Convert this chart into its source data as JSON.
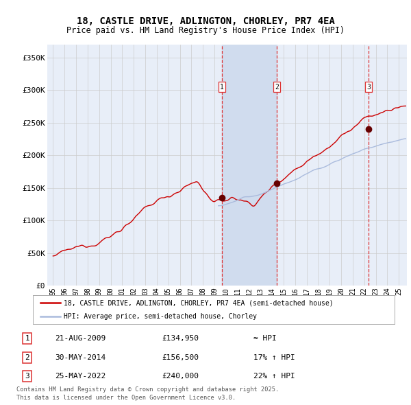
{
  "title1": "18, CASTLE DRIVE, ADLINGTON, CHORLEY, PR7 4EA",
  "title2": "Price paid vs. HM Land Registry's House Price Index (HPI)",
  "legend_red": "18, CASTLE DRIVE, ADLINGTON, CHORLEY, PR7 4EA (semi-detached house)",
  "legend_blue": "HPI: Average price, semi-detached house, Chorley",
  "footer1": "Contains HM Land Registry data © Crown copyright and database right 2025.",
  "footer2": "This data is licensed under the Open Government Licence v3.0.",
  "sales": [
    {
      "num": 1,
      "date": "21-AUG-2009",
      "price": 134950,
      "note": "≈ HPI"
    },
    {
      "num": 2,
      "date": "30-MAY-2014",
      "price": 156500,
      "note": "17% ↑ HPI"
    },
    {
      "num": 3,
      "date": "25-MAY-2022",
      "price": 240000,
      "note": "22% ↑ HPI"
    }
  ],
  "sale_dates_decimal": [
    2009.645,
    2014.413,
    2022.394
  ],
  "sale_prices": [
    134950,
    156500,
    240000
  ],
  "ylim": [
    0,
    370000
  ],
  "yticks": [
    0,
    50000,
    100000,
    150000,
    200000,
    250000,
    300000,
    350000
  ],
  "ytick_labels": [
    "£0",
    "£50K",
    "£100K",
    "£150K",
    "£200K",
    "£250K",
    "£300K",
    "£350K"
  ],
  "xlim_start": 1994.5,
  "xlim_end": 2025.7,
  "x_years": [
    1995,
    1996,
    1997,
    1998,
    1999,
    2000,
    2001,
    2002,
    2003,
    2004,
    2005,
    2006,
    2007,
    2008,
    2009,
    2010,
    2011,
    2012,
    2013,
    2014,
    2015,
    2016,
    2017,
    2018,
    2019,
    2020,
    2021,
    2022,
    2023,
    2024,
    2025
  ],
  "background_color": "#ffffff",
  "plot_bg_color": "#e8eef8",
  "grid_color": "#cccccc",
  "red_color": "#cc0000",
  "blue_color": "#aabbdd",
  "shade_color": "#d0dcee",
  "dashed_color": "#dd3333",
  "marker_color": "#660000",
  "title_fontsize": 10,
  "subtitle_fontsize": 8.5
}
